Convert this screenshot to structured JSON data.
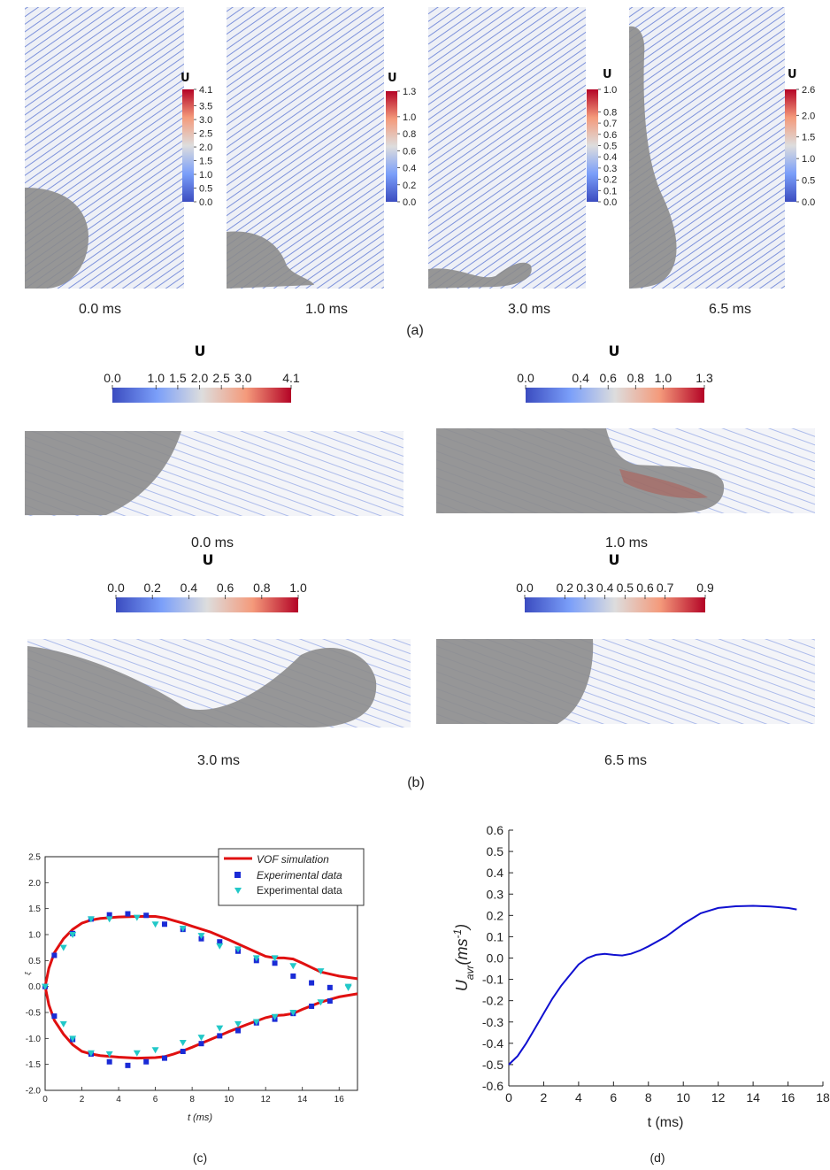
{
  "panel_a": {
    "label": "(a)",
    "frames": [
      {
        "time": "0.0 ms",
        "cb_title": "U",
        "cb_ticks": [
          "4.1",
          "3.5",
          "3.0",
          "2.5",
          "2.0",
          "1.5",
          "1.0",
          "0.5",
          "0.0"
        ]
      },
      {
        "time": "1.0 ms",
        "cb_title": "U",
        "cb_ticks": [
          "1.3",
          "1.0",
          "0.8",
          "0.6",
          "0.4",
          "0.2",
          "0.0"
        ]
      },
      {
        "time": "3.0 ms",
        "cb_title": "U",
        "cb_ticks": [
          "1.0",
          "0.8",
          "0.7",
          "0.6",
          "0.5",
          "0.4",
          "0.3",
          "0.2",
          "0.1",
          "0.0"
        ]
      },
      {
        "time": "6.5 ms",
        "cb_title": "U",
        "cb_ticks": [
          "2.6",
          "2.0",
          "1.5",
          "1.0",
          "0.5",
          "0.0"
        ]
      }
    ]
  },
  "panel_b": {
    "label": "(b)",
    "frames": [
      {
        "time": "0.0 ms",
        "cb_title": "U",
        "cb_ticks": [
          "0.0",
          "1.0",
          "1.5",
          "2.0",
          "2.5",
          "3.0",
          "4.1"
        ]
      },
      {
        "time": "1.0 ms",
        "cb_title": "U",
        "cb_ticks": [
          "0.0",
          "0.4",
          "0.6",
          "0.8",
          "1.0",
          "1.3"
        ]
      },
      {
        "time": "3.0 ms",
        "cb_title": "U",
        "cb_ticks": [
          "0.0",
          "0.2",
          "0.4",
          "0.6",
          "0.8",
          "1.0"
        ]
      },
      {
        "time": "6.5 ms",
        "cb_title": "U",
        "cb_ticks": [
          "0.0",
          "0.2",
          "0.3",
          "0.4",
          "0.5",
          "0.6",
          "0.7",
          "0.9"
        ]
      }
    ]
  },
  "colors": {
    "sim_line": "#e01010",
    "exp_square": "#1a2bd6",
    "exp_triangle": "#22c8c8",
    "uavr_line": "#1010d0",
    "cmap_low": "#3b4cc0",
    "cmap_mid": "#dddddd",
    "cmap_high": "#b40426",
    "droplet": "#8c8c8c"
  },
  "chart_data": [
    {
      "type": "line",
      "panel": "(c)",
      "xlabel": "t (ms)",
      "ylabel": "ξ",
      "xlim": [
        0,
        17
      ],
      "ylim": [
        -2.0,
        2.5
      ],
      "xticks": [
        "0",
        "2",
        "4",
        "6",
        "8",
        "10",
        "12",
        "14",
        "16"
      ],
      "yticks": [
        "-2.0",
        "-1.5",
        "-1.0",
        "-0.5",
        "0.0",
        "0.5",
        "1.0",
        "1.5",
        "2.0",
        "2.5"
      ],
      "grid": false,
      "legend_position": "top-right",
      "legend": [
        "VOF simulation",
        "Experimental data",
        "Experimental data"
      ],
      "series": [
        {
          "name": "VOF simulation",
          "kind": "line",
          "color": "#e01010",
          "upper": {
            "x": [
              0,
              0.2,
              0.5,
              1,
              1.5,
              2,
              2.5,
              3,
              4,
              5,
              6,
              6.5,
              7,
              7.5,
              8,
              9,
              10,
              11,
              12,
              12.5,
              13,
              13.5,
              14,
              15,
              16,
              17
            ],
            "y": [
              0,
              0.35,
              0.65,
              0.92,
              1.1,
              1.22,
              1.28,
              1.31,
              1.34,
              1.35,
              1.35,
              1.32,
              1.27,
              1.22,
              1.16,
              1.05,
              0.9,
              0.74,
              0.58,
              0.55,
              0.55,
              0.53,
              0.45,
              0.28,
              0.2,
              0.15
            ]
          },
          "lower": {
            "x": [
              0,
              0.2,
              0.5,
              1,
              1.5,
              2,
              2.5,
              3,
              4,
              5,
              6,
              6.5,
              7,
              7.5,
              8,
              9,
              10,
              11,
              12,
              12.5,
              13,
              13.5,
              14,
              15,
              16,
              17
            ],
            "y": [
              0,
              -0.35,
              -0.65,
              -0.92,
              -1.12,
              -1.25,
              -1.3,
              -1.33,
              -1.36,
              -1.38,
              -1.37,
              -1.35,
              -1.3,
              -1.24,
              -1.17,
              -1.02,
              -0.87,
              -0.73,
              -0.6,
              -0.56,
              -0.55,
              -0.52,
              -0.44,
              -0.3,
              -0.2,
              -0.14
            ]
          }
        },
        {
          "name": "Experimental data",
          "kind": "square",
          "color": "#1a2bd6",
          "x": [
            0,
            0.5,
            1.5,
            2.5,
            3.5,
            4.5,
            5.5,
            6.5,
            7.5,
            8.5,
            9.5,
            10.5,
            11.5,
            12.5,
            13.5,
            14.5,
            15.5,
            0.5,
            1.5,
            2.5,
            3.5,
            4.5,
            5.5,
            6.5,
            7.5,
            8.5,
            9.5,
            10.5,
            11.5,
            12.5,
            13.5,
            14.5,
            15.5
          ],
          "y": [
            0,
            0.6,
            1.02,
            1.3,
            1.38,
            1.4,
            1.37,
            1.2,
            1.1,
            0.92,
            0.86,
            0.68,
            0.5,
            0.45,
            0.2,
            0.07,
            -0.02,
            -0.57,
            -1.02,
            -1.3,
            -1.45,
            -1.52,
            -1.45,
            -1.38,
            -1.25,
            -1.1,
            -0.95,
            -0.85,
            -0.7,
            -0.63,
            -0.52,
            -0.38,
            -0.28
          ]
        },
        {
          "name": "Experimental data",
          "kind": "triangle",
          "color": "#22c8c8",
          "x": [
            0,
            1,
            1.5,
            2.5,
            3.5,
            5,
            6,
            7.5,
            8.5,
            9.5,
            10.5,
            11.5,
            12.5,
            13.5,
            15,
            16.5,
            1,
            1.5,
            2.5,
            3.5,
            5,
            6,
            7.5,
            8.5,
            9.5,
            10.5,
            11.5,
            12.5,
            13.5,
            15,
            16.5
          ],
          "y": [
            0,
            0.75,
            1.0,
            1.3,
            1.3,
            1.33,
            1.2,
            1.12,
            0.98,
            0.78,
            0.72,
            0.55,
            0.55,
            0.4,
            0.3,
            0.0,
            -0.72,
            -1.0,
            -1.28,
            -1.3,
            -1.28,
            -1.22,
            -1.08,
            -0.98,
            -0.8,
            -0.72,
            -0.68,
            -0.58,
            -0.5,
            -0.3,
            -0.02
          ]
        }
      ]
    },
    {
      "type": "line",
      "panel": "(d)",
      "xlabel": "t (ms)",
      "ylabel": "U_avr(ms^-1)",
      "xlim": [
        0,
        18
      ],
      "ylim": [
        -0.6,
        0.6
      ],
      "xticks": [
        "0",
        "2",
        "4",
        "6",
        "8",
        "10",
        "12",
        "14",
        "16",
        "18"
      ],
      "yticks": [
        "-0.6",
        "-0.5",
        "-0.4",
        "-0.3",
        "-0.2",
        "-0.1",
        "0.0",
        "0.1",
        "0.2",
        "0.3",
        "0.4",
        "0.5",
        "0.6"
      ],
      "grid": false,
      "series": [
        {
          "color": "#1010d0",
          "x": [
            0,
            0.5,
            1,
            1.5,
            2,
            2.5,
            3,
            3.5,
            4,
            4.5,
            5,
            5.5,
            6,
            6.5,
            7,
            7.5,
            8,
            9,
            10,
            11,
            12,
            13,
            14,
            15,
            16,
            16.5
          ],
          "y": [
            -0.5,
            -0.46,
            -0.4,
            -0.33,
            -0.26,
            -0.19,
            -0.13,
            -0.08,
            -0.03,
            0.0,
            0.015,
            0.02,
            0.015,
            0.012,
            0.02,
            0.035,
            0.055,
            0.1,
            0.16,
            0.21,
            0.235,
            0.243,
            0.245,
            0.242,
            0.235,
            0.228
          ]
        }
      ]
    }
  ]
}
